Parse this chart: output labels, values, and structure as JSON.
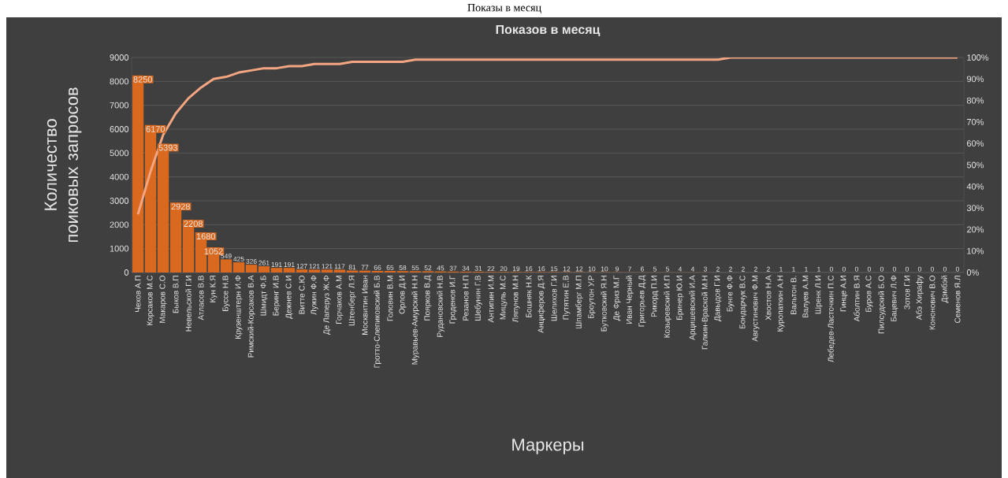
{
  "chart_data": {
    "type": "bar",
    "title": "Показов в месяц",
    "xlabel": "Маркеры",
    "ylabel": "Количество поиковых запросов",
    "annotations": [
      "Показы в месяц"
    ],
    "categories": [
      "Чехов А.П",
      "Корсаков М.С",
      "Макаров С.О",
      "Быков В.П",
      "Невельской Г.И",
      "Атласов В.В",
      "Кун К.Я",
      "Буссе Н.В",
      "Крузенштерн И.Ф",
      "Римский-Корсаков В.А",
      "Шмидт Ф.Б",
      "Беринг И.В",
      "Дежнев С.И",
      "Витте С.Ю",
      "Лужин Ф.Ф",
      "Де Лаперуз Ж.Ф",
      "Горчаков А.М",
      "Штенберг Л.Я",
      "Москвитин Иван",
      "Гротто-Слепиковский Б.В",
      "Головин В.М",
      "Орлов Д.И",
      "Муравьев-Амурский Н.Н",
      "Поярков В.Д",
      "Рудановский Н.В",
      "Гроденов И.Г",
      "Резанов Н.П",
      "Шебунин Г.В",
      "Антипин И.М",
      "Мицуль М.С",
      "Ляпунов М.Н",
      "Бошняк Н.К",
      "Анциферов Д.Я",
      "Шелихов Г.И",
      "Путятин Е.В",
      "Шпамберг М.П",
      "Броутон У.Р",
      "Бутковский Я.Н",
      "Де Фриз М.Г",
      "Иван Черный",
      "Григорьев Д.Д",
      "Рикорд П.И",
      "Козыревский И.П",
      "Бринер Ю.И",
      "Арцишевский И.А",
      "Галкин-Враской М.Н",
      "Давыдов Г.И",
      "Бунге Ф.Ф",
      "Бондарчук В.С",
      "Августинович Ф.М",
      "Хвостов Н.А",
      "Куропаткин А.Н",
      "Вальтон В.",
      "Валуев А.М",
      "Шренк Л.И",
      "Лебедев-Ласточкин П.С",
      "Гинце А.И",
      "Аболтин В.Я",
      "Буров А.С",
      "Пилсудский Б.О",
      "Бацевич Л.Ф",
      "Зотов Г.И",
      "Абэ Хирафу",
      "Кононович В.О",
      "Дэмбэй",
      "Семенов Я.Л"
    ],
    "series": [
      {
        "color": "#d9691e",
        "values": [
          8250,
          6170,
          5393,
          2928,
          2208,
          1680,
          1052,
          549,
          425,
          326,
          261,
          191,
          191,
          127,
          121,
          121,
          117,
          81,
          77,
          66,
          65,
          58,
          55,
          52,
          45,
          37,
          34,
          31,
          22,
          20,
          19,
          16,
          16,
          15,
          12,
          12,
          10,
          10,
          9,
          7,
          6,
          5,
          5,
          4,
          4,
          3,
          2,
          2,
          2,
          2,
          2,
          1,
          1,
          1,
          1,
          0,
          0,
          0,
          0,
          0,
          0,
          0,
          0,
          0,
          0,
          0
        ],
        "value_labels": [
          "8250",
          "6170",
          "5393",
          "2928",
          "2208",
          "1680",
          "1052",
          "549",
          "425",
          "326",
          "261",
          "191",
          "191",
          "127",
          "121",
          "121",
          "117",
          "81",
          "77",
          "66",
          "65",
          "58",
          "55",
          "52",
          "45",
          "37",
          "34",
          "31",
          "22",
          "20",
          "19",
          "16",
          "16",
          "15",
          "12",
          "12",
          "10",
          "10",
          "9",
          "7",
          "6",
          "5",
          "5",
          "4",
          "4",
          "3",
          "2",
          "2",
          "2",
          "2",
          "2",
          "1",
          "1",
          "1",
          "1",
          "0",
          "0",
          "0",
          "0",
          "0",
          "0",
          "0",
          "0",
          "0",
          "0",
          "0"
        ]
      },
      {
        "type": "line",
        "axis": "y2",
        "color": "#f4a582",
        "values": [
          27,
          47,
          64,
          74,
          81,
          86,
          90,
          91,
          93,
          94,
          95,
          95,
          96,
          96,
          97,
          97,
          97,
          98,
          98,
          98,
          98,
          98,
          99,
          99,
          99,
          99,
          99,
          99,
          99,
          99,
          99,
          99,
          99,
          99,
          99,
          99,
          99,
          99,
          99,
          99,
          99,
          99,
          99,
          99,
          99,
          99,
          99,
          100,
          100,
          100,
          100,
          100,
          100,
          100,
          100,
          100,
          100,
          100,
          100,
          100,
          100,
          100,
          100,
          100,
          100,
          100
        ]
      }
    ],
    "ylim": [
      0,
      9000
    ],
    "yticks": [
      0,
      1000,
      2000,
      3000,
      4000,
      5000,
      6000,
      7000,
      8000,
      9000
    ],
    "y2lim": [
      0,
      100
    ],
    "y2ticks": [
      {
        "value": 0,
        "label": "0%"
      },
      {
        "value": 10,
        "label": "10%"
      },
      {
        "value": 20,
        "label": "20%"
      },
      {
        "value": 30,
        "label": "30%"
      },
      {
        "value": 40,
        "label": "40%"
      },
      {
        "value": 50,
        "label": "50%"
      },
      {
        "value": 60,
        "label": "60%"
      },
      {
        "value": 70,
        "label": "70%"
      },
      {
        "value": 80,
        "label": "80%"
      },
      {
        "value": 90,
        "label": "90%"
      },
      {
        "value": 100,
        "label": "100%"
      }
    ],
    "grid": "y"
  }
}
